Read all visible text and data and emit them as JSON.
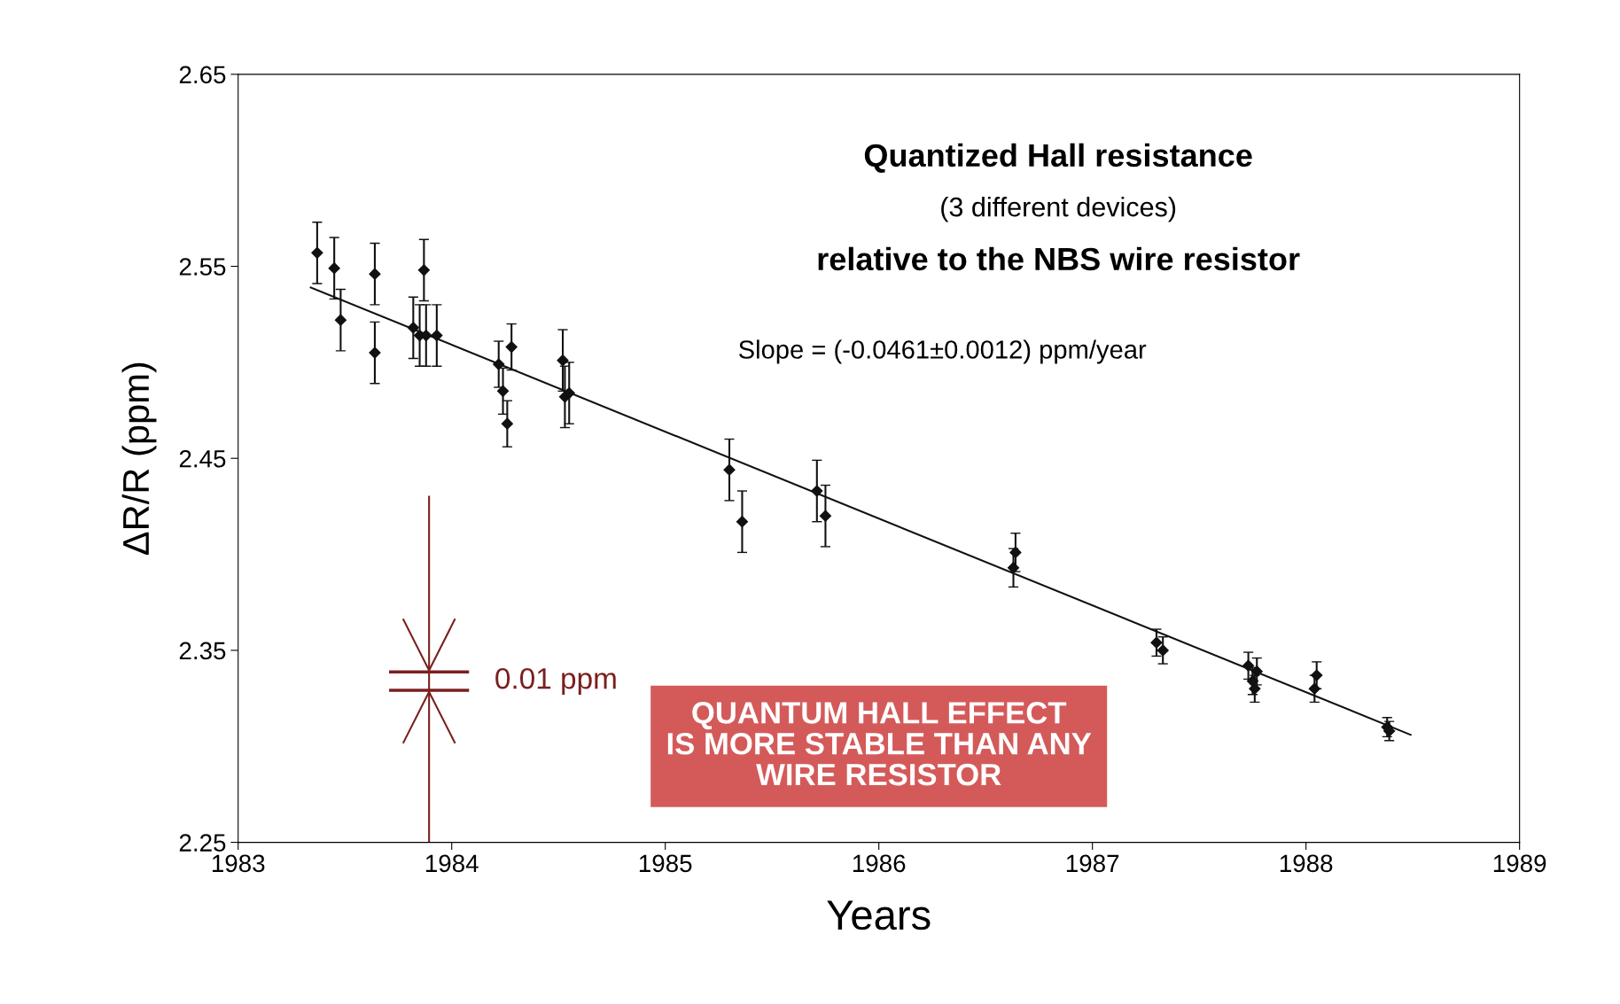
{
  "chart_data": {
    "type": "scatter",
    "title": "Quantized Hall resistance",
    "subtitle": "(3 different devices)",
    "xlabel": "Years",
    "ylabel": "ΔR/R (ppm)",
    "annotations": [
      "relative to the NBS wire resistor",
      "Slope = (-0.0461±0.0012) ppm/year",
      "0.01 ppm",
      "QUANTUM HALL EFFECT\nIS MORE STABLE THAN ANY\nWIRE RESISTOR"
    ],
    "xlim": [
      1983,
      1989
    ],
    "xticks": [
      1983,
      1984,
      1985,
      1986,
      1987,
      1988,
      1989
    ],
    "ylim": [
      2.25,
      2.65
    ],
    "yticks": [
      2.25,
      2.35,
      2.45,
      2.55,
      2.65
    ],
    "grid": false,
    "legend": false,
    "series": [
      {
        "color": "#111111",
        "marker": "diamond",
        "x": [
          1983.37,
          1983.45,
          1983.48,
          1983.64,
          1983.64,
          1983.82,
          1983.85,
          1983.87,
          1983.88,
          1983.93,
          1984.22,
          1984.24,
          1984.26,
          1984.28,
          1984.52,
          1984.53,
          1984.55,
          1985.3,
          1985.36,
          1985.71,
          1985.75,
          1986.63,
          1986.64,
          1987.3,
          1987.33,
          1987.73,
          1987.75,
          1987.76,
          1987.77,
          1988.04,
          1988.05,
          1988.38,
          1988.39
        ],
        "values": [
          2.557,
          2.549,
          2.522,
          2.546,
          2.505,
          2.518,
          2.514,
          2.548,
          2.514,
          2.514,
          2.499,
          2.485,
          2.468,
          2.508,
          2.501,
          2.482,
          2.484,
          2.444,
          2.417,
          2.433,
          2.42,
          2.393,
          2.401,
          2.354,
          2.35,
          2.342,
          2.334,
          2.33,
          2.339,
          2.33,
          2.337,
          2.31,
          2.308
        ],
        "errors": [
          0.016,
          0.016,
          0.016,
          0.016,
          0.016,
          0.016,
          0.016,
          0.016,
          0.016,
          0.016,
          0.012,
          0.012,
          0.012,
          0.012,
          0.016,
          0.016,
          0.016,
          0.016,
          0.016,
          0.016,
          0.016,
          0.01,
          0.01,
          0.007,
          0.007,
          0.007,
          0.007,
          0.007,
          0.007,
          0.007,
          0.007,
          0.005,
          0.005
        ]
      },
      {
        "type": "line",
        "color": "#111111",
        "x": [
          1983.34,
          1988.49
        ],
        "values": [
          2.539,
          2.306
        ]
      }
    ]
  }
}
